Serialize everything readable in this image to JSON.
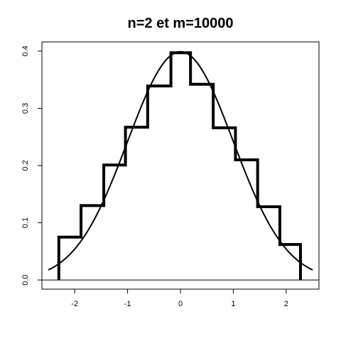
{
  "chart_data": {
    "type": "line",
    "title": "n=2 et m=10000",
    "xlabel": "",
    "ylabel": "",
    "xlim": [
      -2.62,
      2.62
    ],
    "ylim": [
      -0.016,
      0.416
    ],
    "x_ticks": [
      "-2",
      "-1",
      "0",
      "1",
      "2"
    ],
    "y_ticks": [
      "0.0",
      "0.1",
      "0.2",
      "0.3",
      "0.4"
    ],
    "grid": false,
    "legend": "none",
    "axis_line_color": "#000000",
    "series": [
      {
        "kind": "step",
        "color": "#000000",
        "bin_edges": [
          -2.3,
          -1.88,
          -1.45,
          -1.04,
          -0.62,
          -0.18,
          0.19,
          0.62,
          1.04,
          1.46,
          1.88,
          2.27
        ],
        "heights": [
          0.075,
          0.13,
          0.201,
          0.267,
          0.339,
          0.397,
          0.342,
          0.266,
          0.21,
          0.128,
          0.062
        ],
        "baseline": 0.0
      },
      {
        "kind": "curve",
        "function": "standard normal density",
        "color": "#000000",
        "x_range": [
          -2.5,
          2.5
        ]
      }
    ]
  }
}
